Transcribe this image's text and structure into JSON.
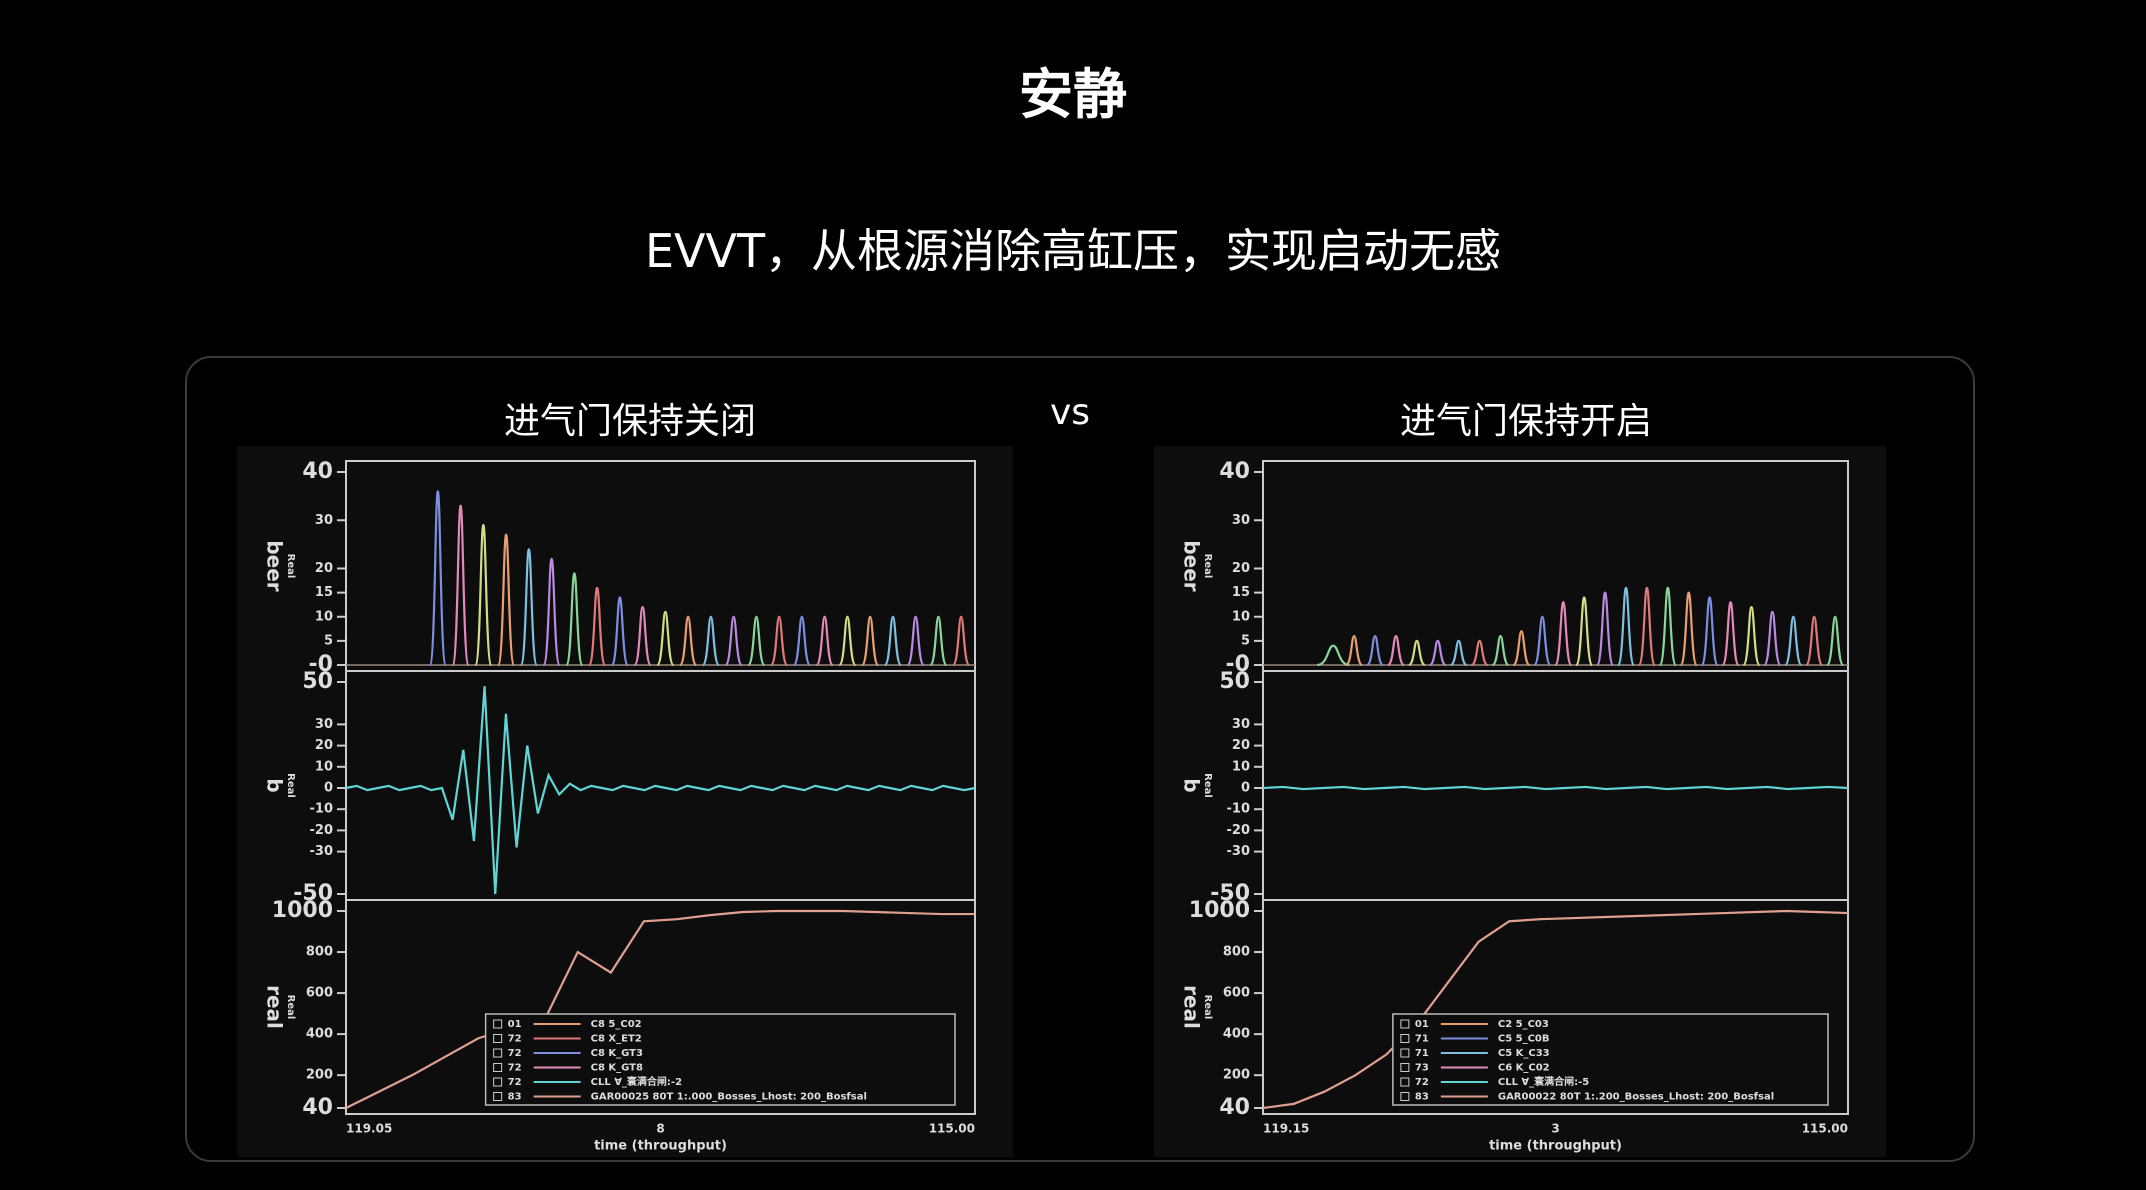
{
  "header": {
    "title": "安静",
    "subtitle": "EVVT，从根源消除高缸压，实现启动无感"
  },
  "comparison": {
    "left_label": "进气门保持关闭",
    "vs": "vs",
    "right_label": "进气门保持开启"
  },
  "chart_data": [
    {
      "type": "waveform",
      "xlabel": "time (throughput)",
      "xtick_labels": [
        "119.05",
        "8",
        "115.00"
      ],
      "panels": [
        {
          "ylabel": "beer",
          "ylabel_sub": "Real",
          "ylim": [
            0,
            40
          ],
          "yticks": [
            {
              "value": 0,
              "label": "-0"
            },
            5,
            10,
            15,
            20,
            30,
            40
          ],
          "peak_colors": [
            "#7e8ee0",
            "#e48ab8",
            "#d6dc86",
            "#e8a070",
            "#7ec0e0",
            "#b88ae0",
            "#8ad69a",
            "#e07a7a"
          ],
          "peaks": [
            36,
            33,
            29,
            27,
            24,
            22,
            19,
            16,
            14,
            12,
            11,
            10,
            10,
            10,
            10,
            10,
            10,
            10,
            10,
            10,
            10,
            10,
            10,
            10
          ]
        },
        {
          "ylabel": "b",
          "ylabel_sub": "Real",
          "ylim": [
            -50,
            50
          ],
          "yticks": [
            -50,
            -30,
            -20,
            -10,
            0,
            10,
            20,
            30,
            50
          ],
          "color": "#5fd6d6",
          "values": [
            0,
            1,
            -1,
            0,
            1,
            -1,
            0,
            1,
            -1,
            0,
            -15,
            18,
            -25,
            48,
            -50,
            35,
            -28,
            20,
            -12,
            6,
            -3,
            2,
            -1,
            1,
            0,
            -1,
            1,
            0,
            -1,
            1,
            0,
            -1,
            1,
            0,
            -1,
            1,
            0,
            -1,
            1,
            0,
            -1,
            1,
            0,
            -1,
            1,
            0,
            -1,
            1,
            0,
            -1,
            1,
            0,
            -1,
            1,
            0,
            -1,
            1,
            0,
            -1,
            0
          ]
        },
        {
          "ylabel": "real",
          "ylabel_sub": "Real",
          "ylim": [
            40,
            1000
          ],
          "yticks": [
            40,
            200,
            400,
            600,
            800,
            1000
          ],
          "color": "#e0a090",
          "values": [
            40,
            120,
            200,
            290,
            380,
            430,
            470,
            800,
            700,
            950,
            960,
            980,
            995,
            1000,
            1000,
            1000,
            995,
            990,
            985,
            985
          ],
          "legend": [
            {
              "id": "01",
              "name": "C8 5_C02",
              "color": "#e8a070"
            },
            {
              "id": "72",
              "name": "C8 X_ET2",
              "color": "#e07a7a"
            },
            {
              "id": "72",
              "name": "C8 K_GT3",
              "color": "#7e8ee0"
            },
            {
              "id": "72",
              "name": "C8 K_GT8",
              "color": "#e48ab8"
            },
            {
              "id": "72",
              "name": "CLL ∀_寰满合闸:-2",
              "color": "#5fd6d6"
            },
            {
              "id": "83",
              "name": "GAR00025 80T 1:.000_Bosses_Lhost: 200_Bosfsal",
              "color": "#e0a090"
            }
          ]
        }
      ]
    },
    {
      "type": "waveform",
      "xlabel": "time (throughput)",
      "xtick_labels": [
        "119.15",
        "3",
        "115.00"
      ],
      "panels": [
        {
          "ylabel": "beer",
          "ylabel_sub": "Real",
          "ylim": [
            0,
            40
          ],
          "yticks": [
            {
              "value": 0,
              "label": "-0"
            },
            5,
            10,
            15,
            20,
            30,
            40
          ],
          "peak_colors": [
            "#8ad69a",
            "#e8a070",
            "#7e8ee0",
            "#e48ab8",
            "#d6dc86",
            "#b88ae0",
            "#7ec0e0",
            "#e07a7a"
          ],
          "peaks": [
            4,
            6,
            6,
            6,
            5,
            5,
            5,
            5,
            6,
            7,
            10,
            13,
            14,
            15,
            16,
            16,
            16,
            15,
            14,
            13,
            12,
            11,
            10,
            10,
            10
          ]
        },
        {
          "ylabel": "b",
          "ylabel_sub": "Real",
          "ylim": [
            -50,
            50
          ],
          "yticks": [
            -50,
            -30,
            -20,
            -10,
            0,
            10,
            20,
            30,
            50
          ],
          "color": "#5fd6d6",
          "values": [
            0,
            0.5,
            -0.5,
            0,
            0.5,
            -0.5,
            0,
            0.5,
            -0.5,
            0,
            0.5,
            -0.5,
            0,
            0.5,
            -0.5,
            0,
            0.5,
            -0.5,
            0,
            0.5,
            -0.5,
            0,
            0.5,
            -0.5,
            0,
            0.5,
            -0.5,
            0,
            0.5,
            0
          ]
        },
        {
          "ylabel": "real",
          "ylabel_sub": "Real",
          "ylim": [
            40,
            1000
          ],
          "yticks": [
            40,
            200,
            400,
            600,
            800,
            1000
          ],
          "color": "#e0a090",
          "values": [
            40,
            60,
            120,
            200,
            300,
            450,
            650,
            850,
            950,
            960,
            965,
            970,
            975,
            980,
            985,
            990,
            995,
            1000,
            995,
            990
          ],
          "legend": [
            {
              "id": "01",
              "name": "C2 5_C03",
              "color": "#e8a070"
            },
            {
              "id": "71",
              "name": "C5 5_C0B",
              "color": "#7e8ee0"
            },
            {
              "id": "71",
              "name": "C5 K_C33",
              "color": "#7ec0e0"
            },
            {
              "id": "73",
              "name": "C6 K_C02",
              "color": "#e48ab8"
            },
            {
              "id": "72",
              "name": "CLL ∀_寰满合闸:-5",
              "color": "#5fd6d6"
            },
            {
              "id": "83",
              "name": "GAR00022 80T 1:.200_Bosses_Lhost: 200_Bosfsal",
              "color": "#e0a090"
            }
          ]
        }
      ]
    }
  ]
}
